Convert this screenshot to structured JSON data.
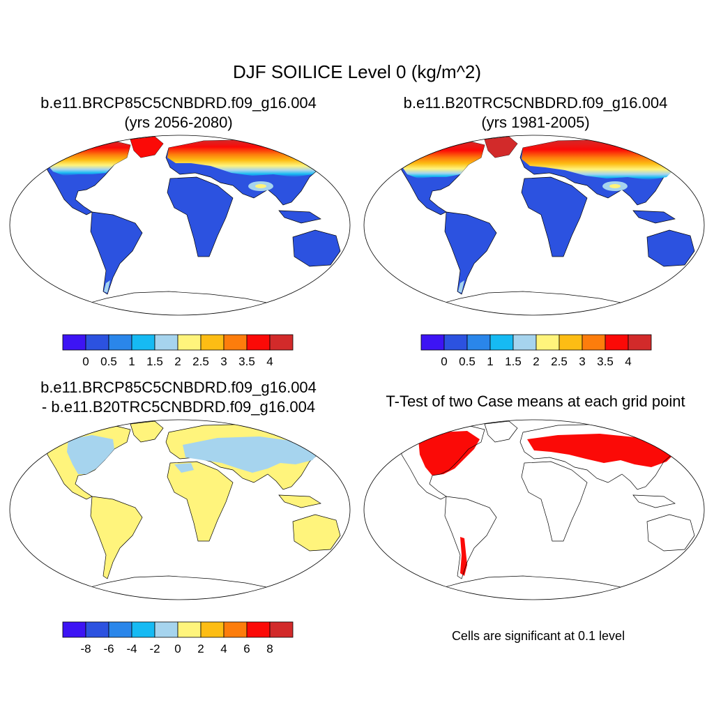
{
  "title": "DJF SOILICE Level 0 (kg/m^2)",
  "panels": [
    {
      "id": "case",
      "title_lines": [
        "b.e11.BRCP85C5CNBDRD.f09_g16.004",
        "(yrs 2056-2080)"
      ]
    },
    {
      "id": "control",
      "title_lines": [
        "b.e11.B20TRC5CNBDRD.f09_g16.004",
        "(yrs 1981-2005)"
      ]
    },
    {
      "id": "difference",
      "title_lines": [
        "b.e11.BRCP85C5CNBDRD.f09_g16.004",
        "- b.e11.B20TRC5CNBDRD.f09_g16.004"
      ]
    },
    {
      "id": "ttest",
      "title_lines": [
        "T-Test of two Case means at each grid point"
      ],
      "note": "Cells are significant at 0.1 level"
    }
  ],
  "colorbars": [
    {
      "id": "case",
      "colors": [
        "#3d14f4",
        "#2c52e0",
        "#2a86ea",
        "#16baf3",
        "#a6d4ee",
        "#fff47c",
        "#fdbd14",
        "#fd7d0c",
        "#fb0a07",
        "#d22a2a"
      ],
      "labels": [
        "0",
        "0.5",
        "1",
        "1.5",
        "2",
        "2.5",
        "3",
        "3.5",
        "4"
      ]
    },
    {
      "id": "control",
      "colors": [
        "#3d14f4",
        "#2c52e0",
        "#2a86ea",
        "#16baf3",
        "#a6d4ee",
        "#fff47c",
        "#fdbd14",
        "#fd7d0c",
        "#fb0a07",
        "#d22a2a"
      ],
      "labels": [
        "0",
        "0.5",
        "1",
        "1.5",
        "2",
        "2.5",
        "3",
        "3.5",
        "4"
      ]
    },
    {
      "id": "difference",
      "colors": [
        "#3d14f4",
        "#2c52e0",
        "#2a86ea",
        "#16baf3",
        "#a6d4ee",
        "#fff47c",
        "#fdbd14",
        "#fd7d0c",
        "#fb0a07",
        "#d22a2a"
      ],
      "labels": [
        "-8",
        "-6",
        "-4",
        "-2",
        "0",
        "2",
        "4",
        "6",
        "8"
      ]
    }
  ],
  "map_colors": {
    "ocean": "#ffffff",
    "low_value": "#2c52e0",
    "diff_positive": "#fff47c",
    "diff_negative": "#a6d4ee",
    "significant": "#fb0a07",
    "coastline": "#000000"
  }
}
